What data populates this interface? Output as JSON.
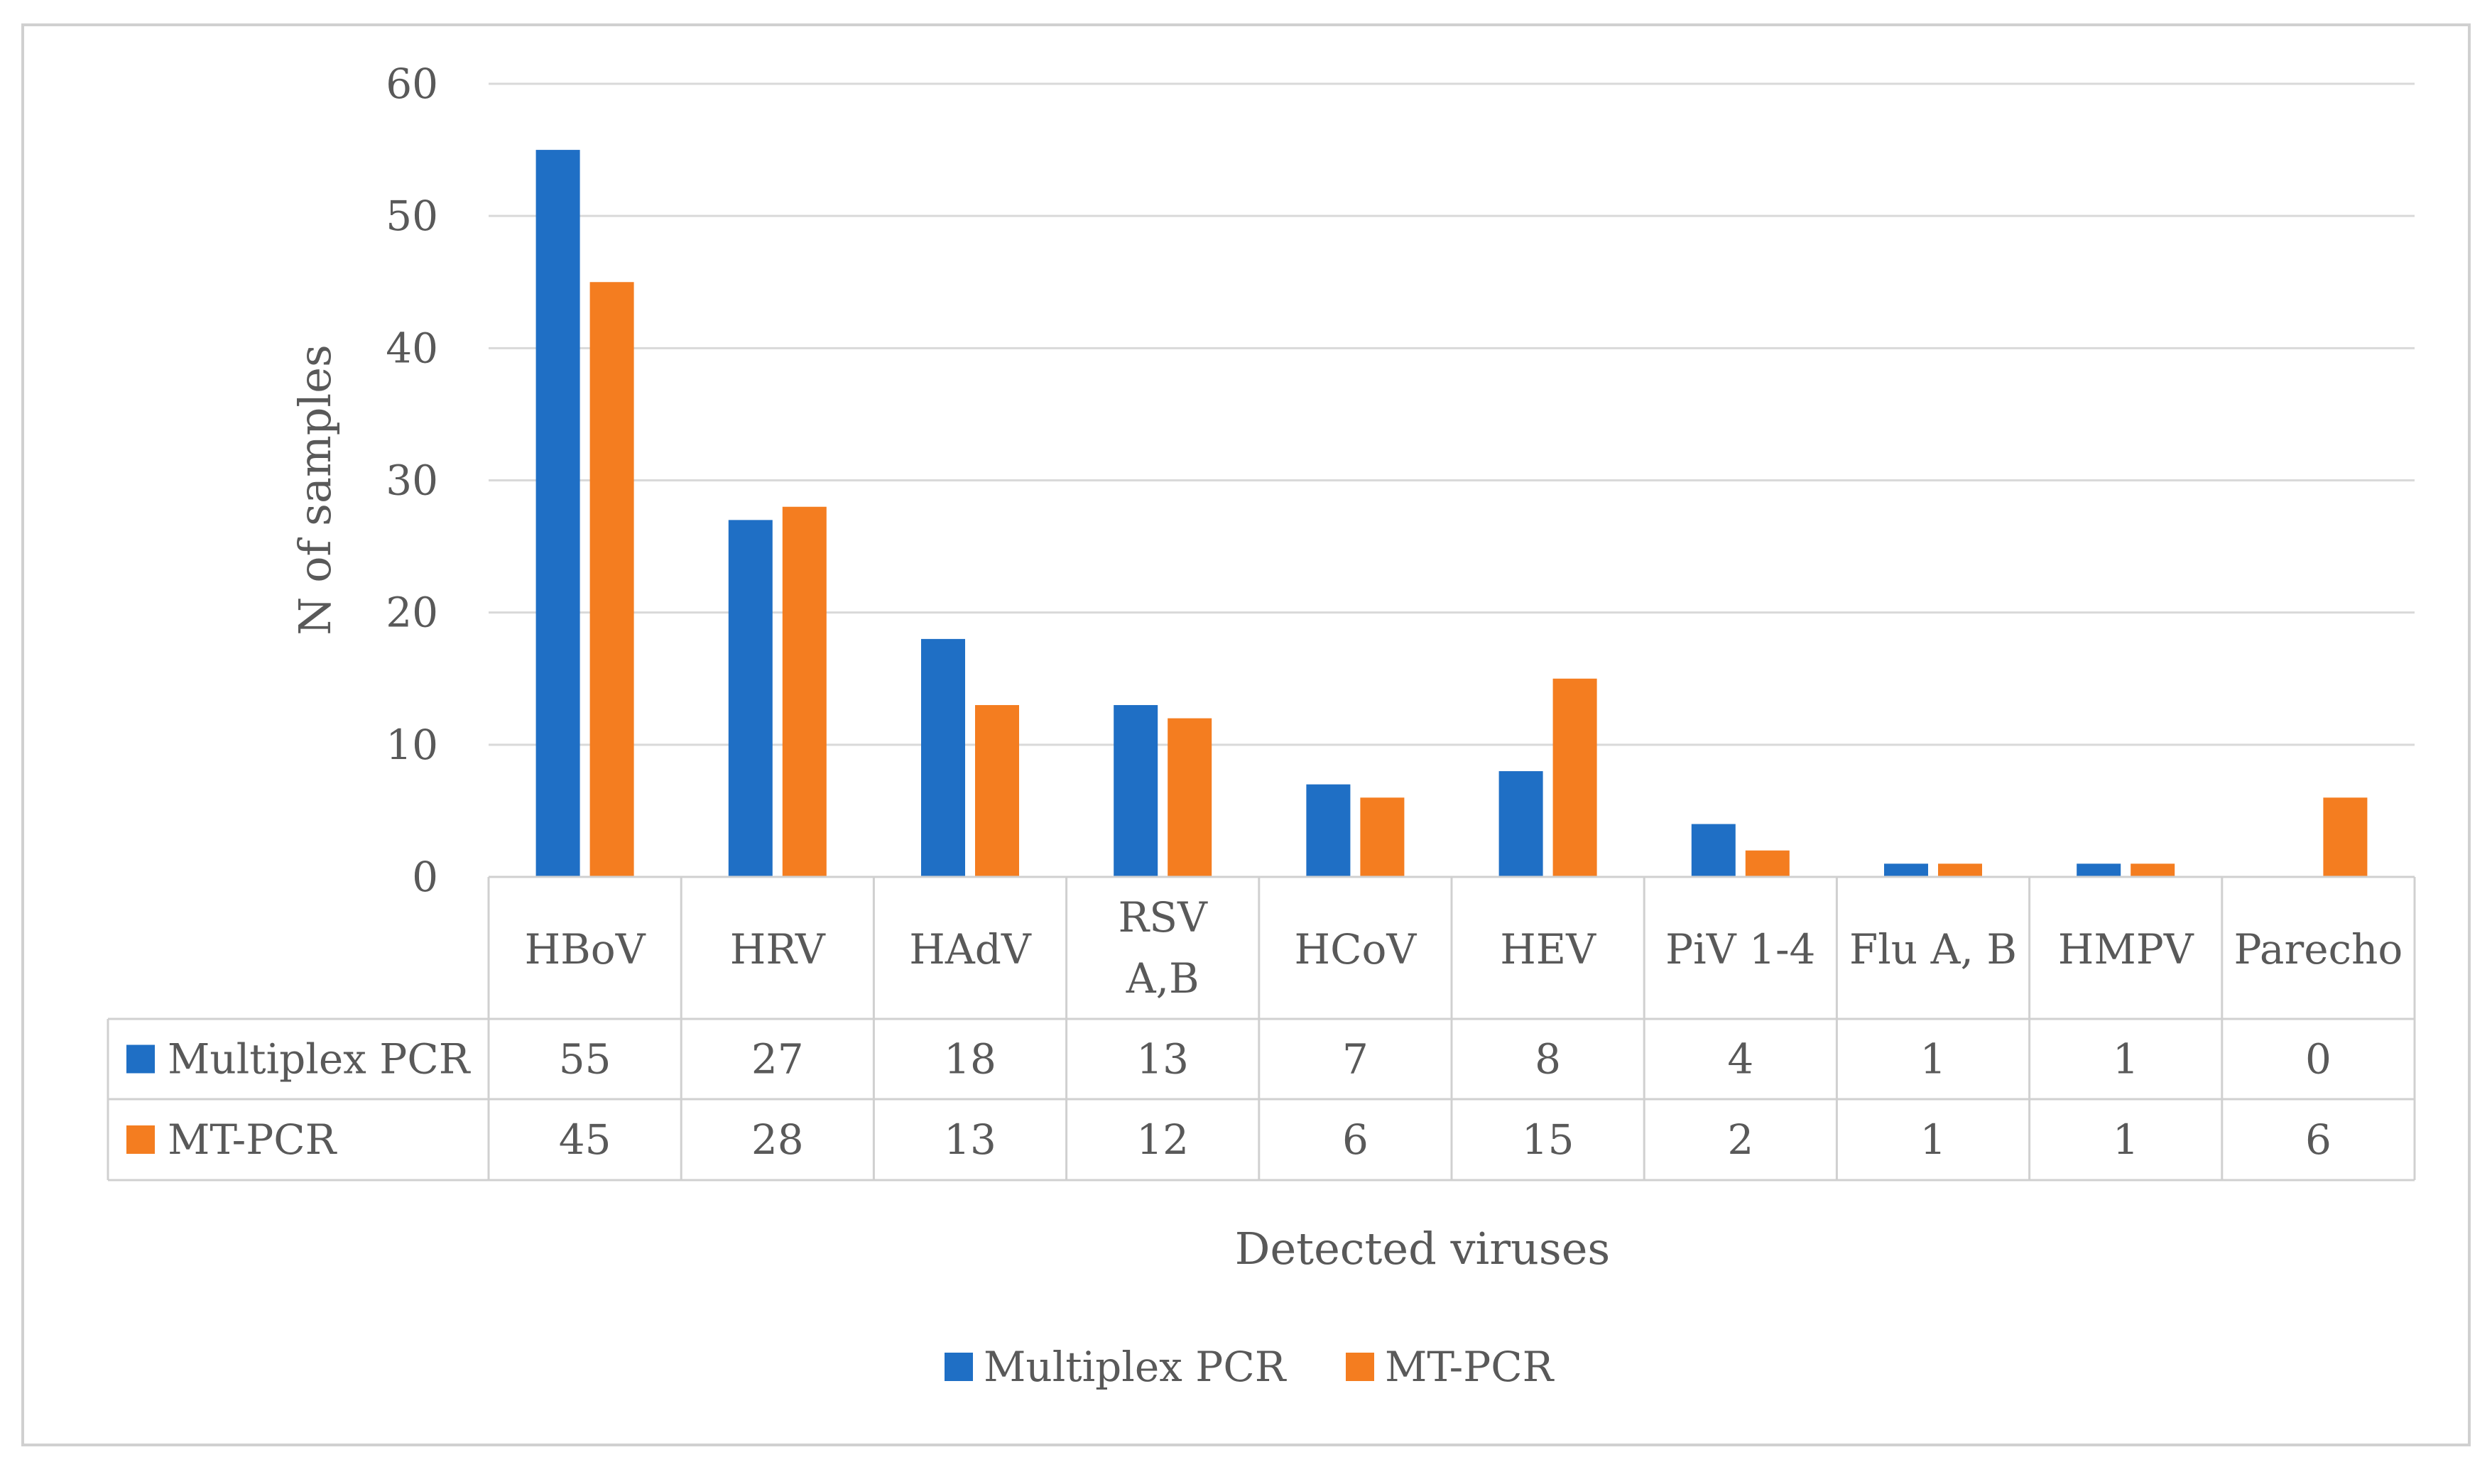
{
  "chart_data": {
    "type": "bar",
    "title": "",
    "xlabel": "Detected viruses",
    "ylabel": "N of samples",
    "ylim": [
      0,
      60
    ],
    "yticks": [
      0,
      10,
      20,
      30,
      40,
      50,
      60
    ],
    "grid": true,
    "legend_position": "bottom",
    "categories": [
      [
        "HBoV"
      ],
      [
        "HRV"
      ],
      [
        "HAdV"
      ],
      [
        "RSV",
        "A,B"
      ],
      [
        "HCoV"
      ],
      [
        "HEV"
      ],
      [
        "PiV 1-4"
      ],
      [
        "Flu A, B"
      ],
      [
        "HMPV"
      ],
      [
        "Parecho"
      ]
    ],
    "series": [
      {
        "name": "Multiplex PCR",
        "color": "#1f6fc5",
        "values": [
          55,
          27,
          18,
          13,
          7,
          8,
          4,
          1,
          1,
          0
        ]
      },
      {
        "name": "MT-PCR",
        "color": "#f47d20",
        "values": [
          45,
          28,
          13,
          12,
          6,
          15,
          2,
          1,
          1,
          6
        ]
      }
    ],
    "data_table": true
  }
}
